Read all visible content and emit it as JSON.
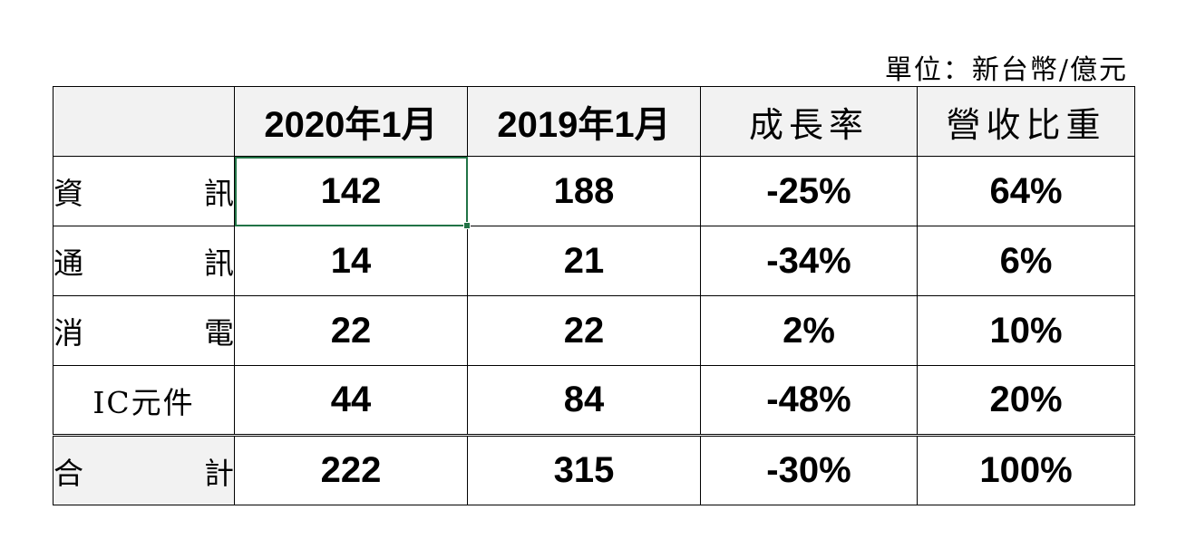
{
  "unit_note": "單位：新台幣/億元",
  "header": {
    "corner": "",
    "col1": "2020年1月",
    "col2": "2019年1月",
    "col3": "成長率",
    "col4": "營收比重"
  },
  "rows": [
    {
      "label_left": "資",
      "label_right": "訊",
      "v2020": "142",
      "v2019": "188",
      "growth": "-25%",
      "share": "64%"
    },
    {
      "label_left": "通",
      "label_right": "訊",
      "v2020": "14",
      "v2019": "21",
      "growth": "-34%",
      "share": "6%"
    },
    {
      "label_left": "消",
      "label_right": "電",
      "v2020": "22",
      "v2019": "22",
      "growth": "2%",
      "share": "10%"
    },
    {
      "label": "IC元件",
      "v2020": "44",
      "v2019": "84",
      "growth": "-48%",
      "share": "20%"
    }
  ],
  "total": {
    "label_left": "合",
    "label_right": "計",
    "v2020": "222",
    "v2019": "315",
    "growth": "-30%",
    "share": "100%"
  },
  "colors": {
    "header_bg": "#f2f2f2",
    "selection": "#217346"
  }
}
